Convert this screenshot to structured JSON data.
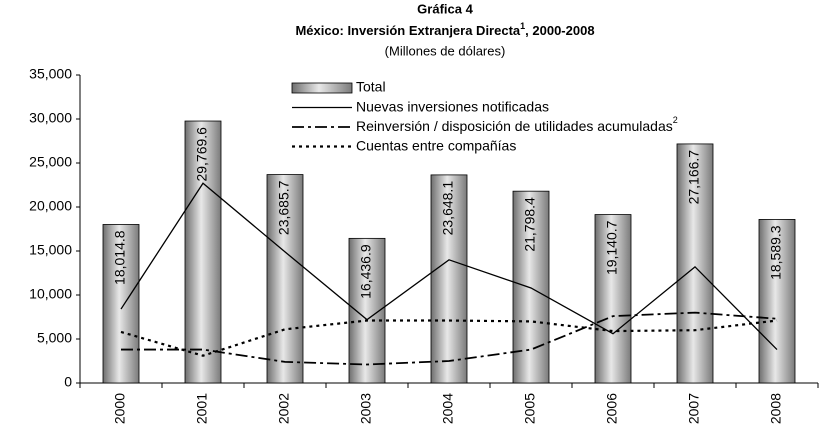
{
  "chart_data": {
    "type": "bar",
    "title": "Gráfica 4",
    "subtitle": "México: Inversión Extranjera Directa",
    "subtitle_note": "1",
    "subtitle_end": ", 2000-2008",
    "units": "(Millones de dólares)",
    "categories": [
      "2000",
      "2001",
      "2002",
      "2003",
      "2004",
      "2005",
      "2006",
      "2007",
      "2008"
    ],
    "bar_name": "Total",
    "values": [
      18014.8,
      29769.6,
      23685.7,
      16436.9,
      23648.1,
      21798.4,
      19140.7,
      27166.7,
      18589.3
    ],
    "value_labels": [
      "18,014.8",
      "29,769.6",
      "23,685.7",
      "16,436.9",
      "23,648.1",
      "21,798.4",
      "19,140.7",
      "27,166.7",
      "18,589.3"
    ],
    "color": "#999999",
    "series": [
      {
        "name": "Nuevas inversiones notificadas",
        "color": "#000000",
        "style": "solid",
        "values": [
          8400,
          22700,
          14900,
          7200,
          14000,
          10800,
          5600,
          13200,
          3800
        ]
      },
      {
        "name": "Reinversión / disposición de utilidades acumuladas",
        "note": "2",
        "color": "#000000",
        "style": "dashdot",
        "values": [
          3800,
          3800,
          2400,
          2100,
          2500,
          3800,
          7600,
          8000,
          7300
        ]
      },
      {
        "name": "Cuentas entre compañías",
        "color": "#000000",
        "style": "dotted",
        "values": [
          5800,
          3100,
          6100,
          7100,
          7100,
          7000,
          5900,
          6000,
          7100
        ]
      }
    ],
    "ylim": [
      0,
      35000
    ],
    "yticks": [
      0,
      {
        "value": 5000,
        "label": "5,000"
      },
      {
        "value": 10000,
        "label": "10,000"
      },
      {
        "value": 15000,
        "label": "15,000"
      },
      {
        "value": 20000,
        "label": "20,000"
      },
      {
        "value": 25000,
        "label": "25,000"
      },
      {
        "value": 30000,
        "label": "30,000"
      },
      {
        "value": 35000,
        "label": "35,000"
      }
    ],
    "grid": false
  }
}
